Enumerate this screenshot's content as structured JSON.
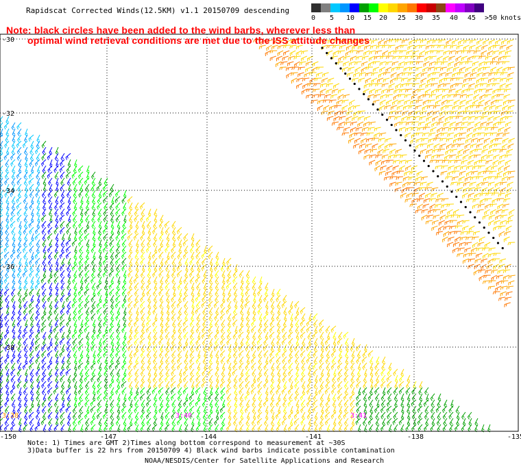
{
  "title": "Rapidscat Corrected Winds(12.5KM) v1.1 20150709 descending",
  "notes": [
    "Note: black circles have been added to the wind barbs, wherever less than",
    "optimal wind retrieval conditions are met due to the ISS attitude changes"
  ],
  "colorbar": {
    "unit_label": "knots",
    "labels": [
      "0",
      "5",
      "10",
      "15",
      "20",
      "25",
      "30",
      "35",
      "40",
      "45",
      ">50"
    ],
    "colors": [
      "#303030",
      "#808080",
      "#00c8ff",
      "#0096ff",
      "#0000ff",
      "#00a000",
      "#00ff00",
      "#ffff00",
      "#ffd700",
      "#ffa500",
      "#ff7700",
      "#ff0000",
      "#c80000",
      "#8b4513",
      "#ff00ff",
      "#c000ff",
      "#8000c0",
      "#400080"
    ]
  },
  "map": {
    "longitude_ticks": [
      "-150",
      "-147",
      "-144",
      "-141",
      "-138",
      "-135"
    ],
    "latitude_ticks": [
      "-30",
      "-32",
      "-34",
      "-36",
      "-38"
    ],
    "time_labels": [
      {
        "text": "3:38",
        "color": "#ff8c00"
      },
      {
        "text": "3:40",
        "color": "#ff00ff"
      },
      {
        "text": "3:41",
        "color": "#ff00ff"
      }
    ]
  },
  "footnotes": [
    "Note: 1) Times are GMT 2)Times along bottom correspond to measurement at ~30S",
    "3)Data buffer is 22 hrs from 20150709 4) Black wind barbs indicate possible contamination"
  ],
  "credit": "NOAA/NESDIS/Center for Satellite Applications and Research"
}
